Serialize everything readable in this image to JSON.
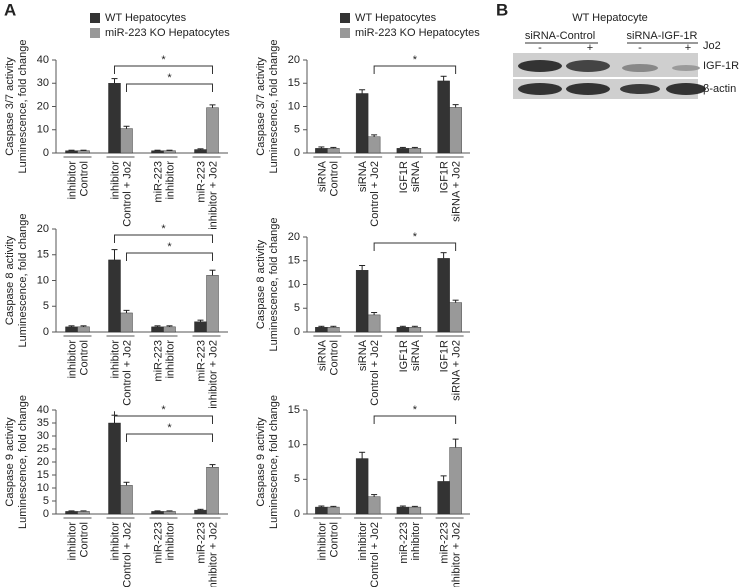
{
  "panel_labels": [
    "A",
    "B"
  ],
  "blot": {
    "title": "WT Hepatocyte",
    "groups": [
      "siRNA-Control",
      "siRNA-IGF-1R"
    ],
    "lanes": [
      "-",
      "+",
      "-",
      "+"
    ],
    "treatment": "Jo2",
    "bands": [
      "IGF-1R",
      "β-actin"
    ]
  },
  "chart_data": [
    {
      "type": "bar",
      "legend": true,
      "ylabel": [
        "Caspase 3/7 activity",
        "Luminescence, fold change"
      ],
      "categories": [
        [
          "inhibitor",
          "Control"
        ],
        [
          "inhibitor",
          "Control + Jo2"
        ],
        [
          "miR-223",
          "inhibitor"
        ],
        [
          "miR-223",
          "inhibitor + Jo2"
        ]
      ],
      "series": [
        {
          "name": "WT Hepatocytes",
          "color": "#333333",
          "values": [
            1,
            30,
            1,
            1.5
          ],
          "errors": [
            0.2,
            2,
            0.2,
            0.3
          ]
        },
        {
          "name": "miR-223 KO Hepatocytes",
          "color": "#999999",
          "values": [
            1,
            10.5,
            1,
            19.5
          ],
          "errors": [
            0.2,
            1,
            0.2,
            1.2
          ]
        }
      ],
      "ylim": [
        0,
        40
      ],
      "yticks": [
        0,
        10,
        20,
        30,
        40
      ],
      "annotations": [
        "*",
        "*"
      ]
    },
    {
      "type": "bar",
      "legend": true,
      "ylabel": [
        "Caspase 3/7 activity",
        "Luminescence, fold change"
      ],
      "categories": [
        [
          "siRNA",
          "Control"
        ],
        [
          "siRNA",
          "Control + Jo2"
        ],
        [
          "IGF1R",
          "siRNA"
        ],
        [
          "IGF1R",
          "siRNA + Jo2"
        ]
      ],
      "series": [
        {
          "name": "WT Hepatocytes",
          "color": "#333333",
          "values": [
            1,
            12.8,
            1,
            15.5
          ],
          "errors": [
            0.3,
            0.8,
            0.2,
            1
          ]
        },
        {
          "name": "miR-223 KO Hepatocytes",
          "color": "#999999",
          "values": [
            1,
            3.5,
            1,
            9.8
          ],
          "errors": [
            0.2,
            0.4,
            0.2,
            0.6
          ]
        }
      ],
      "ylim": [
        0,
        20
      ],
      "yticks": [
        0,
        5,
        10,
        15,
        20
      ],
      "annotations": [
        "*"
      ]
    },
    {
      "type": "bar",
      "legend": false,
      "ylabel": [
        "Caspase 8 activity",
        "Luminescence, fold change"
      ],
      "categories": [
        [
          "inhibitor",
          "Control"
        ],
        [
          "inhibitor",
          "Control + Jo2"
        ],
        [
          "miR-223",
          "inhibitor"
        ],
        [
          "miR-223",
          "inhibitor + Jo2"
        ]
      ],
      "series": [
        {
          "name": "WT Hepatocytes",
          "color": "#333333",
          "values": [
            1,
            14,
            1,
            2
          ],
          "errors": [
            0.2,
            2,
            0.2,
            0.3
          ]
        },
        {
          "name": "miR-223 KO Hepatocytes",
          "color": "#999999",
          "values": [
            1,
            3.7,
            1,
            11
          ],
          "errors": [
            0.2,
            0.5,
            0.2,
            1
          ]
        }
      ],
      "ylim": [
        0,
        20
      ],
      "yticks": [
        0,
        5,
        10,
        15,
        20
      ],
      "annotations": [
        "*",
        "*"
      ]
    },
    {
      "type": "bar",
      "legend": false,
      "ylabel": [
        "Caspase 8 activity",
        "Luminescence, fold change"
      ],
      "categories": [
        [
          "siRNA",
          "Control"
        ],
        [
          "siRNA",
          "Control + Jo2"
        ],
        [
          "IGF1R",
          "siRNA"
        ],
        [
          "IGF1R",
          "siRNA + Jo2"
        ]
      ],
      "series": [
        {
          "name": "WT Hepatocytes",
          "color": "#333333",
          "values": [
            1,
            13,
            1,
            15.5
          ],
          "errors": [
            0.2,
            1,
            0.2,
            1.2
          ]
        },
        {
          "name": "miR-223 KO Hepatocytes",
          "color": "#999999",
          "values": [
            1,
            3.6,
            1,
            6.2
          ],
          "errors": [
            0.2,
            0.5,
            0.2,
            0.5
          ]
        }
      ],
      "ylim": [
        0,
        20
      ],
      "yticks": [
        0,
        5,
        10,
        15,
        20
      ],
      "annotations": [
        "*"
      ]
    },
    {
      "type": "bar",
      "legend": false,
      "ylabel": [
        "Caspase 9 activity",
        "Luminescence, fold change"
      ],
      "categories": [
        [
          "inhibitor",
          "Control"
        ],
        [
          "inhibitor",
          "Control + Jo2"
        ],
        [
          "miR-223",
          "inhibitor"
        ],
        [
          "miR-223",
          "inhibitor + Jo2"
        ]
      ],
      "series": [
        {
          "name": "WT Hepatocytes",
          "color": "#333333",
          "values": [
            1,
            35,
            1,
            1.5
          ],
          "errors": [
            0.2,
            3,
            0.2,
            0.3
          ]
        },
        {
          "name": "miR-223 KO Hepatocytes",
          "color": "#999999",
          "values": [
            1,
            11,
            1,
            18
          ],
          "errors": [
            0.2,
            1.2,
            0.2,
            1
          ]
        }
      ],
      "ylim": [
        0,
        40
      ],
      "yticks": [
        0,
        5,
        10,
        15,
        20,
        25,
        30,
        35,
        40
      ],
      "annotations": [
        "*",
        "*"
      ]
    },
    {
      "type": "bar",
      "legend": false,
      "ylabel": [
        "Caspase 9 activity",
        "Luminescence, fold change"
      ],
      "categories": [
        [
          "inhibitor",
          "Control"
        ],
        [
          "inhibitor",
          "Control + Jo2"
        ],
        [
          "miR-223",
          "inhibitor"
        ],
        [
          "miR-223",
          "inhibitor + Jo2"
        ]
      ],
      "series": [
        {
          "name": "WT Hepatocytes",
          "color": "#333333",
          "values": [
            1,
            8,
            1,
            4.7
          ],
          "errors": [
            0.15,
            0.9,
            0.15,
            0.8
          ]
        },
        {
          "name": "miR-223 KO Hepatocytes",
          "color": "#999999",
          "values": [
            1,
            2.5,
            1,
            9.6
          ],
          "errors": [
            0.1,
            0.3,
            0.1,
            1.2
          ]
        }
      ],
      "ylim": [
        0,
        15
      ],
      "yticks": [
        0,
        5,
        10,
        15
      ],
      "annotations": [
        "*"
      ]
    }
  ]
}
